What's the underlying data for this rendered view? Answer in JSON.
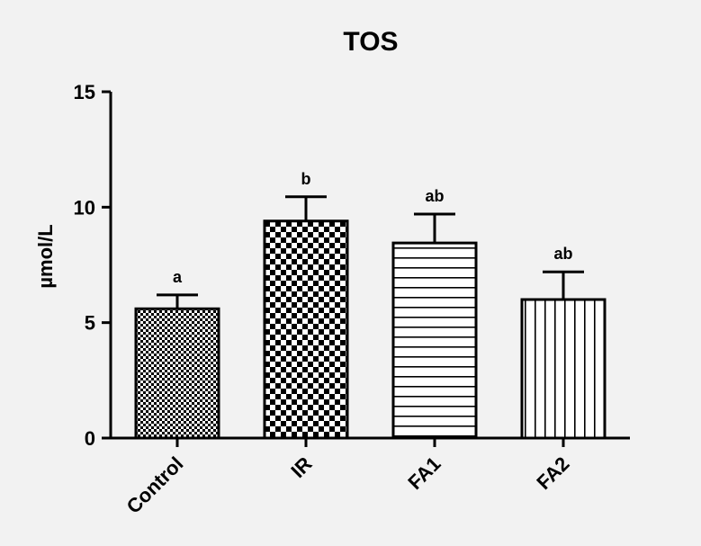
{
  "chart_data": {
    "type": "bar",
    "title": "TOS",
    "xlabel": "",
    "ylabel": "µmol/L",
    "ylim": [
      0,
      15
    ],
    "yticks": [
      0,
      5,
      10,
      15
    ],
    "grid": false,
    "categories": [
      "Control",
      "IR",
      "FA1",
      "FA2"
    ],
    "values": [
      5.6,
      9.4,
      8.45,
      6.0
    ],
    "errors": [
      0.6,
      1.05,
      1.25,
      1.2
    ],
    "significance": [
      "a",
      "b",
      "ab",
      "ab"
    ],
    "patterns": [
      "fine-checker",
      "checker",
      "horizontal-lines",
      "vertical-lines"
    ]
  }
}
